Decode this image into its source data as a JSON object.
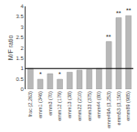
{
  "chart_data": {
    "type": "bar",
    "ylabel": "M/F ratio",
    "categories": [
      "frac (2,263)",
      "emm1 (346)",
      "emm3 (70)",
      "emm12 (179)",
      "emm13 (38)",
      "emm22 (210)",
      "emm33 (375)",
      "emm44 (80)",
      "emm49A (3,253)",
      "emm53 (3,150)",
      "emm89 (985)"
    ],
    "values": [
      1.0,
      0.48,
      0.75,
      0.48,
      0.82,
      0.92,
      0.95,
      1.0,
      2.3,
      3.45,
      3.55
    ],
    "annotations": [
      null,
      "*",
      null,
      "*",
      null,
      null,
      null,
      null,
      "**",
      "**",
      "**"
    ],
    "color": "#b8b8b8",
    "reference_line": 1.0,
    "ylim": [
      0,
      4
    ],
    "yticks": [
      0,
      0.5,
      1,
      1.5,
      2,
      2.5,
      3,
      3.5,
      4
    ],
    "grid": false
  }
}
